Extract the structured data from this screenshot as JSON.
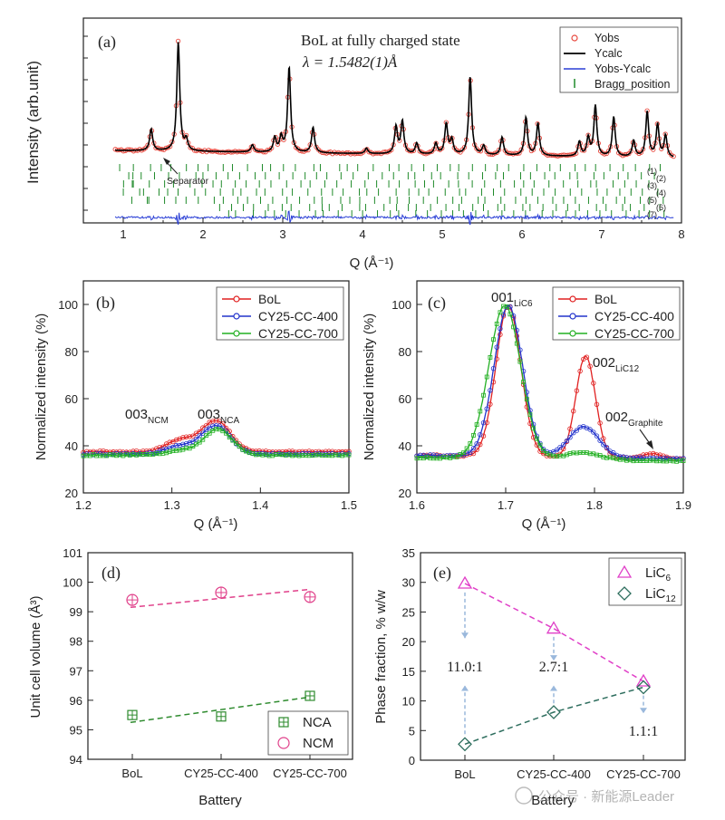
{
  "watermark": "公众号 · 新能源Leader",
  "chart_data": [
    {
      "panel": "a",
      "type": "line",
      "label": "(a)",
      "title": "BoL at fully charged state",
      "subtitle": "λ = 1.5482(1)Å",
      "xlabel": "Q (Å⁻¹)",
      "ylabel": "Intensity (arb.unit)",
      "xlim": [
        0.5,
        8.0
      ],
      "ylim": [
        0,
        100
      ],
      "xticks": [
        "1",
        "2",
        "3",
        "4",
        "5",
        "6",
        "7",
        "8"
      ],
      "legend": [
        "Yobs",
        "Ycalc",
        "Yobs-Ycalc",
        "Bragg_position"
      ],
      "legend_position": "top-right",
      "annotation": "Separator",
      "baseline": 35,
      "peaks": [
        {
          "q": 1.35,
          "h": 12
        },
        {
          "q": 1.69,
          "h": 60
        },
        {
          "q": 1.79,
          "h": 6
        },
        {
          "q": 2.62,
          "h": 4
        },
        {
          "q": 2.9,
          "h": 8
        },
        {
          "q": 2.98,
          "h": 8
        },
        {
          "q": 3.08,
          "h": 47
        },
        {
          "q": 3.38,
          "h": 14
        },
        {
          "q": 4.05,
          "h": 3
        },
        {
          "q": 4.42,
          "h": 15
        },
        {
          "q": 4.5,
          "h": 18
        },
        {
          "q": 4.68,
          "h": 6
        },
        {
          "q": 4.92,
          "h": 6
        },
        {
          "q": 5.05,
          "h": 17
        },
        {
          "q": 5.12,
          "h": 8
        },
        {
          "q": 5.35,
          "h": 43
        },
        {
          "q": 5.52,
          "h": 5
        },
        {
          "q": 5.75,
          "h": 10
        },
        {
          "q": 6.05,
          "h": 21
        },
        {
          "q": 6.2,
          "h": 18
        },
        {
          "q": 6.72,
          "h": 8
        },
        {
          "q": 6.83,
          "h": 10
        },
        {
          "q": 6.92,
          "h": 28
        },
        {
          "q": 7.15,
          "h": 22
        },
        {
          "q": 7.4,
          "h": 9
        },
        {
          "q": 7.57,
          "h": 25
        },
        {
          "q": 7.7,
          "h": 18
        },
        {
          "q": 7.8,
          "h": 12
        }
      ],
      "bragg_rows": [
        "(1)",
        "(2)",
        "(3)",
        "(4)",
        "(5)",
        "(6)",
        "(7)"
      ],
      "colors": {
        "yobs": "#e8493f",
        "ycalc": "#000000",
        "diff": "#2a3fd6",
        "bragg": "#1f8a2a"
      }
    },
    {
      "panel": "b",
      "type": "line",
      "label": "(b)",
      "xlabel": "Q (Å⁻¹)",
      "ylabel": "Normalized intensity (%)",
      "xlim": [
        1.2,
        1.5
      ],
      "ylim": [
        20,
        110
      ],
      "xticks": [
        "1.2",
        "1.3",
        "1.4",
        "1.5"
      ],
      "yticks": [
        "20",
        "40",
        "60",
        "80",
        "100"
      ],
      "series": [
        {
          "name": "BoL",
          "color": "#e02020",
          "baseline": 37.5,
          "peaks": [
            {
              "q": 1.31,
              "h": 5
            },
            {
              "q": 1.35,
              "h": 13
            }
          ]
        },
        {
          "name": "CY25-CC-400",
          "color": "#2233cc",
          "baseline": 36.5,
          "peaks": [
            {
              "q": 1.31,
              "h": 3.5
            },
            {
              "q": 1.35,
              "h": 12
            }
          ]
        },
        {
          "name": "CY25-CC-700",
          "color": "#22b022",
          "baseline": 36,
          "peaks": [
            {
              "q": 1.31,
              "h": 2
            },
            {
              "q": 1.352,
              "h": 11
            }
          ]
        }
      ],
      "annotations": [
        {
          "main": "003",
          "sub": "NCM"
        },
        {
          "main": "003",
          "sub": "NCA"
        }
      ]
    },
    {
      "panel": "c",
      "type": "line",
      "label": "(c)",
      "xlabel": "Q (Å⁻¹)",
      "ylabel": "Normalized intensity (%)",
      "xlim": [
        1.6,
        1.9
      ],
      "ylim": [
        20,
        110
      ],
      "xticks": [
        "1.6",
        "1.7",
        "1.8",
        "1.9"
      ],
      "yticks": [
        "20",
        "40",
        "60",
        "80",
        "100"
      ],
      "series": [
        {
          "name": "BoL",
          "color": "#e02020",
          "baseline": 36,
          "peaks": [
            {
              "q": 1.703,
              "h": 64,
              "w": 0.014
            },
            {
              "q": 1.79,
              "h": 43,
              "w": 0.011
            },
            {
              "q": 1.865,
              "h": 2,
              "w": 0.01
            }
          ]
        },
        {
          "name": "CY25-CC-400",
          "color": "#2233cc",
          "baseline": 36,
          "peaks": [
            {
              "q": 1.703,
              "h": 64,
              "w": 0.016
            },
            {
              "q": 1.788,
              "h": 13,
              "w": 0.017
            }
          ]
        },
        {
          "name": "CY25-CC-700",
          "color": "#22b022",
          "baseline": 35,
          "peaks": [
            {
              "q": 1.699,
              "h": 65,
              "w": 0.018
            },
            {
              "q": 1.786,
              "h": 3,
              "w": 0.02
            }
          ]
        }
      ],
      "annotations": [
        {
          "main": "001",
          "sub": "LiC6"
        },
        {
          "main": "002",
          "sub": "LiC12"
        },
        {
          "main": "002",
          "sub": "Graphite"
        }
      ]
    },
    {
      "panel": "d",
      "type": "scatter",
      "label": "(d)",
      "xlabel": "Battery",
      "ylabel": "Unit cell volume (Å³)",
      "categories": [
        "BoL",
        "CY25-CC-400",
        "CY25-CC-700"
      ],
      "ylim": [
        94,
        101
      ],
      "yticks": [
        "94",
        "95",
        "96",
        "97",
        "98",
        "99",
        "100",
        "101"
      ],
      "series": [
        {
          "name": "NCA",
          "color": "#2e8b2e",
          "values": [
            95.5,
            95.45,
            96.15
          ],
          "trend": [
            95.25,
            95.7,
            96.1
          ]
        },
        {
          "name": "NCM",
          "color": "#e0408a",
          "values": [
            99.4,
            99.65,
            99.5
          ],
          "trend": [
            99.15,
            99.45,
            99.75
          ]
        }
      ]
    },
    {
      "panel": "e",
      "type": "scatter",
      "label": "(e)",
      "xlabel": "Battery",
      "ylabel": "Phase fraction, % w/w",
      "categories": [
        "BoL",
        "CY25-CC-400",
        "CY25-CC-700"
      ],
      "ylim": [
        0,
        35
      ],
      "yticks": [
        "0",
        "5",
        "10",
        "15",
        "20",
        "25",
        "30",
        "35"
      ],
      "series": [
        {
          "name": "LiC6",
          "sub": "6",
          "color": "#e040c8",
          "values": [
            29.8,
            22.2,
            13.3
          ]
        },
        {
          "name": "LiC12",
          "sub": "12",
          "color": "#2e6e5e",
          "values": [
            2.7,
            8.1,
            12.3
          ]
        }
      ],
      "ratios": [
        "11.0:1",
        "2.7:1",
        "1.1:1"
      ]
    }
  ]
}
